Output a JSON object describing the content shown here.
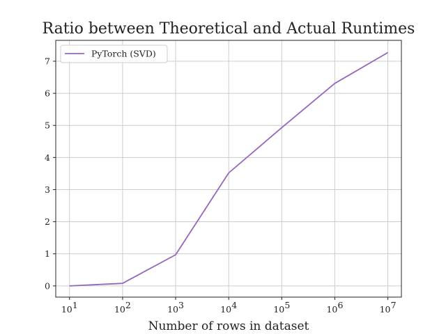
{
  "chart_data": {
    "type": "line",
    "title": "Ratio between Theoretical and Actual Runtimes",
    "xlabel": "Number of rows in dataset",
    "ylabel": "",
    "x_scale": "log",
    "x": [
      10,
      100,
      1000,
      10000,
      100000,
      1000000,
      10000000
    ],
    "x_tick_labels": [
      {
        "base": "10",
        "exp": "1"
      },
      {
        "base": "10",
        "exp": "2"
      },
      {
        "base": "10",
        "exp": "3"
      },
      {
        "base": "10",
        "exp": "4"
      },
      {
        "base": "10",
        "exp": "5"
      },
      {
        "base": "10",
        "exp": "6"
      },
      {
        "base": "10",
        "exp": "7"
      }
    ],
    "y_ticks": [
      0,
      1,
      2,
      3,
      4,
      5,
      6,
      7
    ],
    "ylim": [
      -0.35,
      7.65
    ],
    "xlim": [
      5.5,
      18000000
    ],
    "grid": true,
    "legend_position": "top-left",
    "series": [
      {
        "name": "PyTorch (SVD)",
        "color": "#9467bd",
        "values": [
          0.0,
          0.08,
          0.97,
          3.52,
          4.93,
          6.31,
          7.27
        ]
      }
    ]
  }
}
